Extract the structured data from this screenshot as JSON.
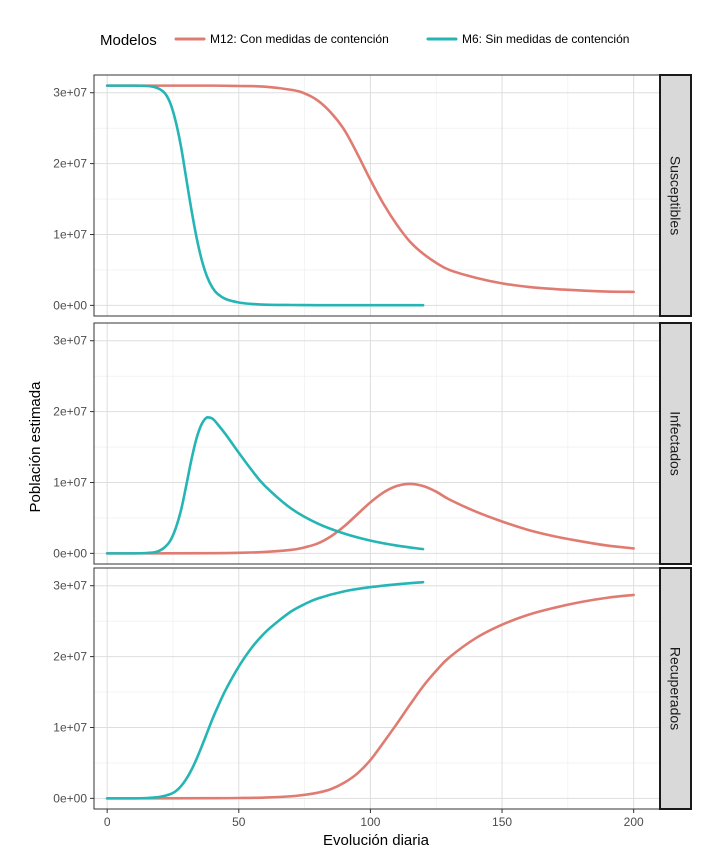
{
  "chart_data": {
    "type": "line",
    "legend": {
      "title": "Modelos",
      "position": "top"
    },
    "xlabel": "Evolución diaria",
    "ylabel": "Población estimada",
    "xlim": [
      -5,
      210
    ],
    "ylim": [
      -1500000,
      32500000
    ],
    "x_ticks": [
      0,
      50,
      100,
      150,
      200
    ],
    "x_tick_labels": [
      "0",
      "50",
      "100",
      "150",
      "200"
    ],
    "y_ticks": [
      0,
      10000000,
      20000000,
      30000000
    ],
    "y_tick_labels": [
      "0e+00",
      "1e+07",
      "2e+07",
      "3e+07"
    ],
    "grid": true,
    "panels": [
      {
        "label": "Susceptibles",
        "series": [
          {
            "name": "M12: Con medidas de contención",
            "color": "#e07b72",
            "x": [
              0,
              20,
              40,
              50,
              60,
              70,
              75,
              80,
              85,
              90,
              95,
              100,
              105,
              110,
              115,
              120,
              125,
              130,
              140,
              150,
              160,
              170,
              180,
              190,
              200
            ],
            "y": [
              31000000,
              31000000,
              31000000,
              30950000,
              30850000,
              30400000,
              29900000,
              28900000,
              27200000,
              24800000,
              21400000,
              17700000,
              14300000,
              11400000,
              9000000,
              7300000,
              6000000,
              5000000,
              3900000,
              3100000,
              2600000,
              2300000,
              2100000,
              1950000,
              1900000
            ]
          },
          {
            "name": "M6: Sin  medidas de contención",
            "color": "#26b5b5",
            "x": [
              0,
              10,
              15,
              18,
              20,
              22,
              24,
              26,
              28,
              30,
              32,
              34,
              36,
              38,
              40,
              42,
              45,
              50,
              55,
              60,
              70,
              80,
              100,
              120
            ],
            "y": [
              31000000,
              31000000,
              30950000,
              30800000,
              30500000,
              29900000,
              28500000,
              26000000,
              22500000,
              18000000,
              13500000,
              9500000,
              6300000,
              4000000,
              2500000,
              1600000,
              900000,
              400000,
              200000,
              100000,
              50000,
              30000,
              20000,
              20000
            ]
          }
        ]
      },
      {
        "label": "Infectados",
        "series": [
          {
            "name": "M12: Con medidas de contención",
            "color": "#e07b72",
            "x": [
              0,
              20,
              40,
              50,
              60,
              70,
              75,
              80,
              85,
              90,
              95,
              100,
              105,
              110,
              115,
              120,
              125,
              130,
              140,
              150,
              160,
              170,
              180,
              190,
              200
            ],
            "y": [
              0,
              0,
              30000,
              80000,
              200000,
              500000,
              850000,
              1400000,
              2400000,
              3800000,
              5500000,
              7200000,
              8600000,
              9500000,
              9800000,
              9500000,
              8700000,
              7600000,
              5900000,
              4500000,
              3300000,
              2400000,
              1700000,
              1100000,
              700000
            ]
          },
          {
            "name": "M6: Sin  medidas de contención",
            "color": "#26b5b5",
            "x": [
              0,
              10,
              15,
              18,
              20,
              22,
              24,
              26,
              28,
              30,
              32,
              34,
              36,
              38,
              40,
              42,
              45,
              50,
              55,
              60,
              70,
              80,
              90,
              100,
              110,
              120
            ],
            "y": [
              0,
              0,
              50000,
              150000,
              400000,
              900000,
              1800000,
              3500000,
              6000000,
              9500000,
              13200000,
              16300000,
              18300000,
              19200000,
              19000000,
              18200000,
              16800000,
              14200000,
              11700000,
              9500000,
              6300000,
              4200000,
              2800000,
              1800000,
              1100000,
              600000
            ]
          }
        ]
      },
      {
        "label": "Recuperados",
        "series": [
          {
            "name": "M12: Con medidas de contención",
            "color": "#e07b72",
            "x": [
              0,
              20,
              40,
              50,
              60,
              70,
              75,
              80,
              85,
              90,
              95,
              100,
              105,
              110,
              115,
              120,
              125,
              130,
              140,
              150,
              160,
              170,
              180,
              190,
              200
            ],
            "y": [
              0,
              0,
              20000,
              50000,
              120000,
              300000,
              500000,
              800000,
              1300000,
              2200000,
              3500000,
              5400000,
              7900000,
              10500000,
              13200000,
              15800000,
              18000000,
              19900000,
              22600000,
              24500000,
              25900000,
              26900000,
              27700000,
              28300000,
              28700000
            ]
          },
          {
            "name": "M6: Sin  medidas de contención",
            "color": "#26b5b5",
            "x": [
              0,
              10,
              15,
              20,
              24,
              26,
              28,
              30,
              32,
              34,
              36,
              38,
              40,
              42,
              45,
              50,
              55,
              60,
              65,
              70,
              75,
              80,
              90,
              100,
              110,
              120
            ],
            "y": [
              0,
              0,
              50000,
              200000,
              600000,
              1000000,
              1700000,
              2700000,
              4000000,
              5600000,
              7400000,
              9300000,
              11200000,
              12900000,
              15300000,
              18600000,
              21300000,
              23400000,
              25000000,
              26400000,
              27400000,
              28200000,
              29200000,
              29800000,
              30200000,
              30500000
            ]
          }
        ]
      }
    ]
  }
}
